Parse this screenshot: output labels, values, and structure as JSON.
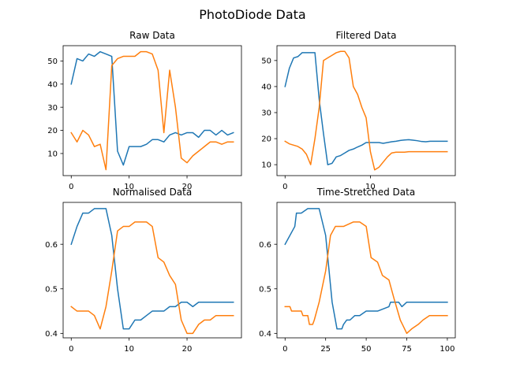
{
  "figure": {
    "suptitle": "PhotoDiode Data"
  },
  "colors": {
    "series1": "#1f77b4",
    "series2": "#ff7f0e",
    "axis": "#000000",
    "background": "#ffffff"
  },
  "chart_data": [
    {
      "type": "line",
      "title": "Raw Data",
      "xlabel": "",
      "ylabel": "",
      "xlim": [
        -1.4,
        29.4
      ],
      "ylim": [
        0.45,
        56.6
      ],
      "xticks": [
        0,
        10,
        20
      ],
      "yticks": [
        10,
        20,
        30,
        40,
        50
      ],
      "ytick_labels": [
        "10",
        "20",
        "30",
        "40",
        "50"
      ],
      "grid": false,
      "series": [
        {
          "values": [
            40,
            51,
            50,
            53,
            52,
            54,
            53,
            52,
            11,
            5,
            13,
            13,
            13,
            14,
            16,
            16,
            15,
            18,
            19,
            18,
            19,
            19,
            17,
            20,
            20,
            18,
            20,
            18,
            19
          ]
        },
        {
          "values": [
            19,
            15,
            20,
            18,
            13,
            14,
            3,
            48,
            51,
            52,
            52,
            52,
            54,
            54,
            53,
            46,
            19,
            46,
            30,
            8,
            6,
            9,
            11,
            13,
            15,
            15,
            14,
            15,
            15
          ]
        }
      ]
    },
    {
      "type": "line",
      "title": "Filtered Data",
      "xlabel": "",
      "ylabel": "",
      "xlim": [
        -0.95,
        19.95
      ],
      "ylim": [
        5.8,
        55.7
      ],
      "xticks": [
        0,
        10
      ],
      "yticks": [
        10,
        20,
        30,
        40,
        50
      ],
      "ytick_labels": [
        "10",
        "20",
        "30",
        "40",
        "50"
      ],
      "grid": false,
      "x": [
        0,
        0.5,
        1,
        1.5,
        2,
        2.5,
        3,
        3.5,
        4,
        4.5,
        5,
        5.5,
        6,
        6.5,
        7,
        7.5,
        8,
        8.5,
        9,
        9.5,
        10,
        10.5,
        11,
        11.5,
        12,
        12.5,
        13,
        13.5,
        14,
        14.5,
        15,
        15.5,
        16,
        16.5,
        17,
        17.5,
        18,
        18.5,
        19
      ],
      "series": [
        {
          "values": [
            40,
            47,
            51,
            51.5,
            53,
            53,
            53,
            53,
            35,
            22,
            10,
            10.5,
            13,
            13.5,
            14.5,
            15.5,
            16,
            16.8,
            17.5,
            18.5,
            18.5,
            18.5,
            18.5,
            18.2,
            18.5,
            18.8,
            19,
            19.3,
            19.5,
            19.6,
            19.4,
            19.2,
            18.9,
            18.8,
            19,
            19,
            19,
            19,
            19
          ]
        },
        {
          "values": [
            19,
            18,
            17.5,
            17,
            16,
            14,
            10,
            20,
            32,
            50,
            51,
            52,
            53,
            53.5,
            53.5,
            51,
            40,
            37,
            32,
            28,
            15,
            8,
            9,
            11,
            13,
            14.5,
            14.8,
            14.8,
            14.8,
            15,
            15,
            15,
            15,
            15,
            15,
            15,
            15,
            15,
            15
          ]
        }
      ]
    },
    {
      "type": "line",
      "title": "Normalised Data",
      "xlabel": "",
      "ylabel": "",
      "xlim": [
        -1.4,
        29.4
      ],
      "ylim": [
        0.39,
        0.694
      ],
      "xticks": [
        0,
        10,
        20
      ],
      "yticks": [
        0.4,
        0.5,
        0.6
      ],
      "ytick_labels": [
        "0.4",
        "0.5",
        "0.6"
      ],
      "grid": false,
      "series": [
        {
          "values": [
            0.6,
            0.64,
            0.67,
            0.67,
            0.68,
            0.68,
            0.68,
            0.62,
            0.5,
            0.41,
            0.41,
            0.43,
            0.43,
            0.44,
            0.45,
            0.45,
            0.45,
            0.46,
            0.46,
            0.47,
            0.47,
            0.46,
            0.47,
            0.47,
            0.47,
            0.47,
            0.47,
            0.47,
            0.47
          ]
        },
        {
          "values": [
            0.46,
            0.45,
            0.45,
            0.45,
            0.44,
            0.41,
            0.46,
            0.54,
            0.63,
            0.64,
            0.64,
            0.65,
            0.65,
            0.65,
            0.64,
            0.57,
            0.56,
            0.53,
            0.51,
            0.43,
            0.4,
            0.4,
            0.42,
            0.43,
            0.43,
            0.44,
            0.44,
            0.44,
            0.44
          ]
        }
      ]
    },
    {
      "type": "line",
      "title": "Time-Stretched Data",
      "xlabel": "",
      "ylabel": "",
      "xlim": [
        -5,
        104.9
      ],
      "ylim": [
        0.39,
        0.694
      ],
      "xticks": [
        0,
        25,
        50,
        75,
        100
      ],
      "yticks": [
        0.4,
        0.5,
        0.6
      ],
      "ytick_labels": [
        "0.4",
        "0.5",
        "0.6"
      ],
      "grid": false,
      "series": [
        {
          "x": [
            0,
            6,
            7,
            10,
            14,
            17,
            21,
            25,
            29,
            32,
            35,
            36,
            38,
            40,
            43,
            46,
            50,
            57,
            64,
            65,
            70,
            72,
            75,
            100
          ],
          "values": [
            0.6,
            0.64,
            0.67,
            0.67,
            0.68,
            0.68,
            0.68,
            0.62,
            0.47,
            0.41,
            0.41,
            0.42,
            0.43,
            0.43,
            0.44,
            0.44,
            0.45,
            0.45,
            0.46,
            0.47,
            0.47,
            0.46,
            0.47,
            0.47
          ]
        },
        {
          "x": [
            0,
            3,
            4,
            7,
            10,
            11,
            14,
            15,
            17,
            18,
            21,
            25,
            28,
            31,
            36,
            42,
            46,
            50,
            53,
            57,
            60,
            64,
            67,
            71,
            75,
            78,
            82,
            85,
            89,
            100
          ],
          "values": [
            0.46,
            0.46,
            0.45,
            0.45,
            0.45,
            0.44,
            0.44,
            0.42,
            0.42,
            0.43,
            0.47,
            0.54,
            0.62,
            0.64,
            0.64,
            0.65,
            0.65,
            0.64,
            0.57,
            0.56,
            0.53,
            0.52,
            0.48,
            0.43,
            0.4,
            0.41,
            0.42,
            0.43,
            0.44,
            0.44
          ]
        }
      ]
    }
  ]
}
